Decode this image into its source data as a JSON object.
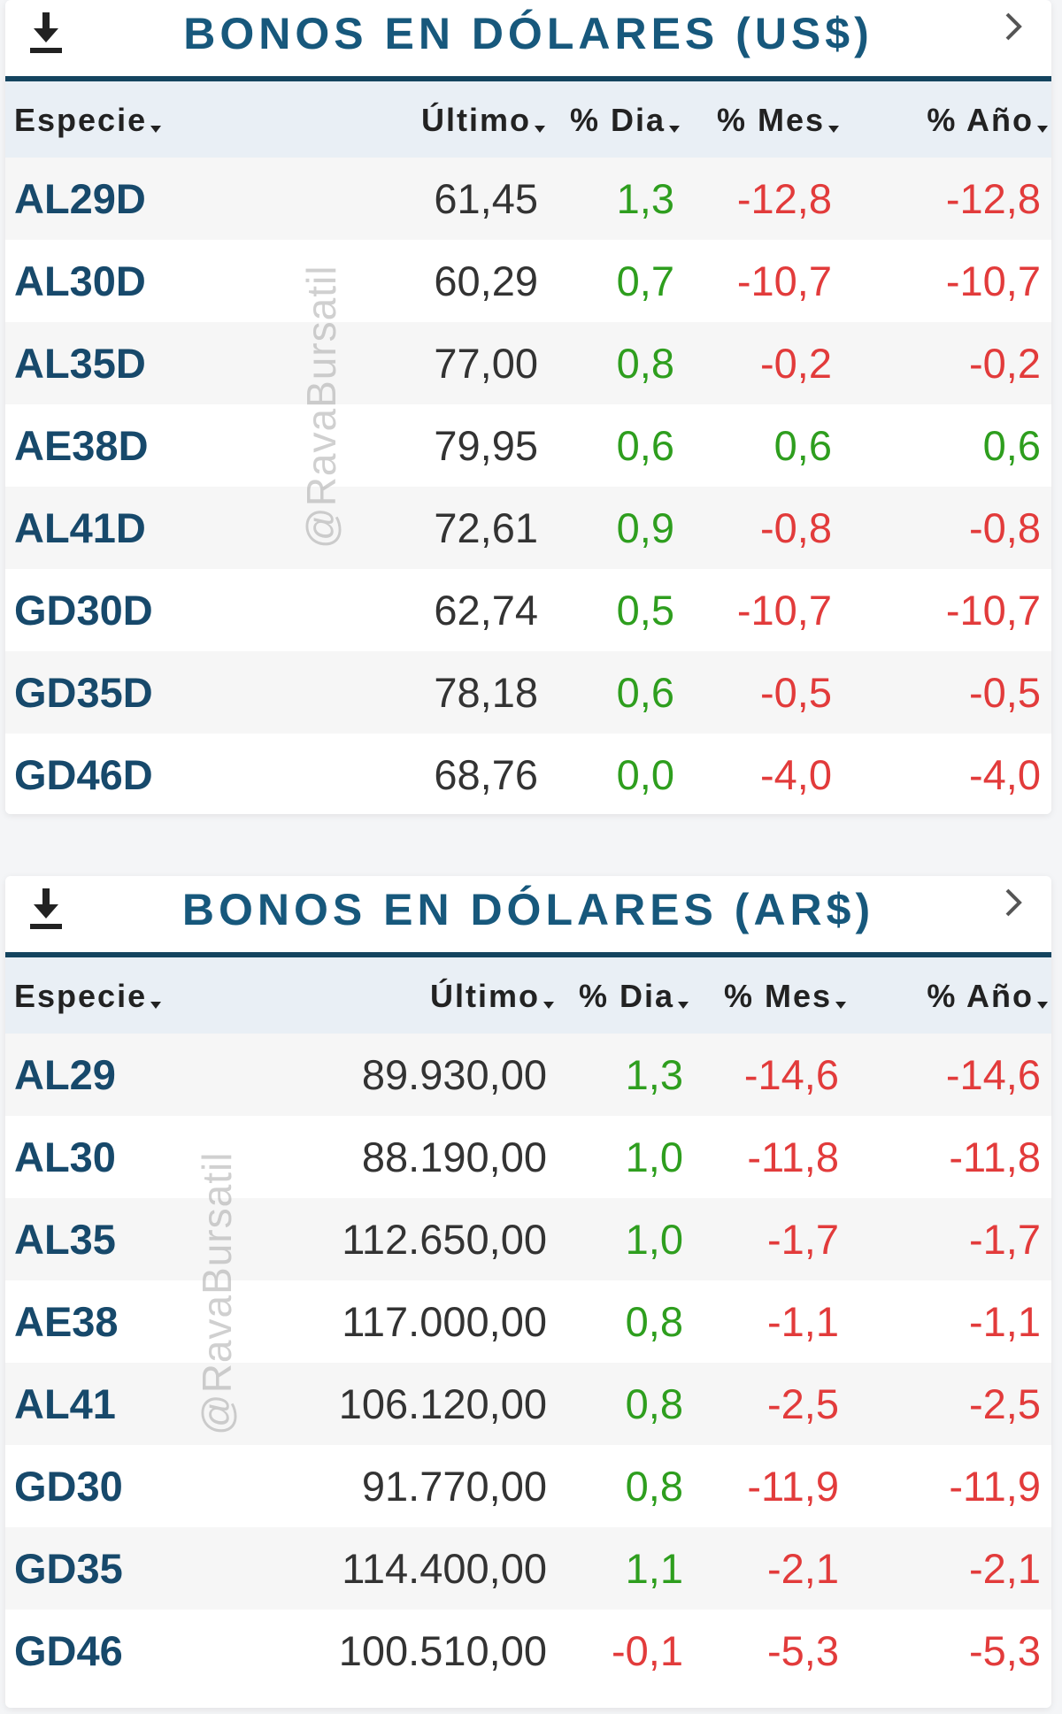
{
  "watermark": "@RavaBursatil",
  "colors": {
    "title": "#17587c",
    "header_rule": "#14445f",
    "positive": "#2e9e1e",
    "negative": "#e23b3b",
    "ticker": "#17496b"
  },
  "icons": {
    "download": "download-icon",
    "chevron": "chevron-right-icon",
    "sort": "caret-down-icon"
  },
  "panels": [
    {
      "title": "BONOS EN DÓLARES (US$)",
      "columns": [
        "Especie",
        "Último",
        "% Dia",
        "% Mes",
        "% Año"
      ],
      "rows": [
        {
          "especie": "AL29D",
          "ultimo": "61,45",
          "dia": "1,3",
          "mes": "-12,8",
          "ano": "-12,8"
        },
        {
          "especie": "AL30D",
          "ultimo": "60,29",
          "dia": "0,7",
          "mes": "-10,7",
          "ano": "-10,7"
        },
        {
          "especie": "AL35D",
          "ultimo": "77,00",
          "dia": "0,8",
          "mes": "-0,2",
          "ano": "-0,2"
        },
        {
          "especie": "AE38D",
          "ultimo": "79,95",
          "dia": "0,6",
          "mes": "0,6",
          "ano": "0,6"
        },
        {
          "especie": "AL41D",
          "ultimo": "72,61",
          "dia": "0,9",
          "mes": "-0,8",
          "ano": "-0,8"
        },
        {
          "especie": "GD30D",
          "ultimo": "62,74",
          "dia": "0,5",
          "mes": "-10,7",
          "ano": "-10,7"
        },
        {
          "especie": "GD35D",
          "ultimo": "78,18",
          "dia": "0,6",
          "mes": "-0,5",
          "ano": "-0,5"
        },
        {
          "especie": "GD46D",
          "ultimo": "68,76",
          "dia": "0,0",
          "mes": "-4,0",
          "ano": "-4,0"
        }
      ]
    },
    {
      "title": "BONOS EN DÓLARES (AR$)",
      "columns": [
        "Especie",
        "Último",
        "% Dia",
        "% Mes",
        "% Año"
      ],
      "rows": [
        {
          "especie": "AL29",
          "ultimo": "89.930,00",
          "dia": "1,3",
          "mes": "-14,6",
          "ano": "-14,6"
        },
        {
          "especie": "AL30",
          "ultimo": "88.190,00",
          "dia": "1,0",
          "mes": "-11,8",
          "ano": "-11,8"
        },
        {
          "especie": "AL35",
          "ultimo": "112.650,00",
          "dia": "1,0",
          "mes": "-1,7",
          "ano": "-1,7"
        },
        {
          "especie": "AE38",
          "ultimo": "117.000,00",
          "dia": "0,8",
          "mes": "-1,1",
          "ano": "-1,1"
        },
        {
          "especie": "AL41",
          "ultimo": "106.120,00",
          "dia": "0,8",
          "mes": "-2,5",
          "ano": "-2,5"
        },
        {
          "especie": "GD30",
          "ultimo": "91.770,00",
          "dia": "0,8",
          "mes": "-11,9",
          "ano": "-11,9"
        },
        {
          "especie": "GD35",
          "ultimo": "114.400,00",
          "dia": "1,1",
          "mes": "-2,1",
          "ano": "-2,1"
        },
        {
          "especie": "GD46",
          "ultimo": "100.510,00",
          "dia": "-0,1",
          "mes": "-5,3",
          "ano": "-5,3"
        }
      ]
    }
  ]
}
